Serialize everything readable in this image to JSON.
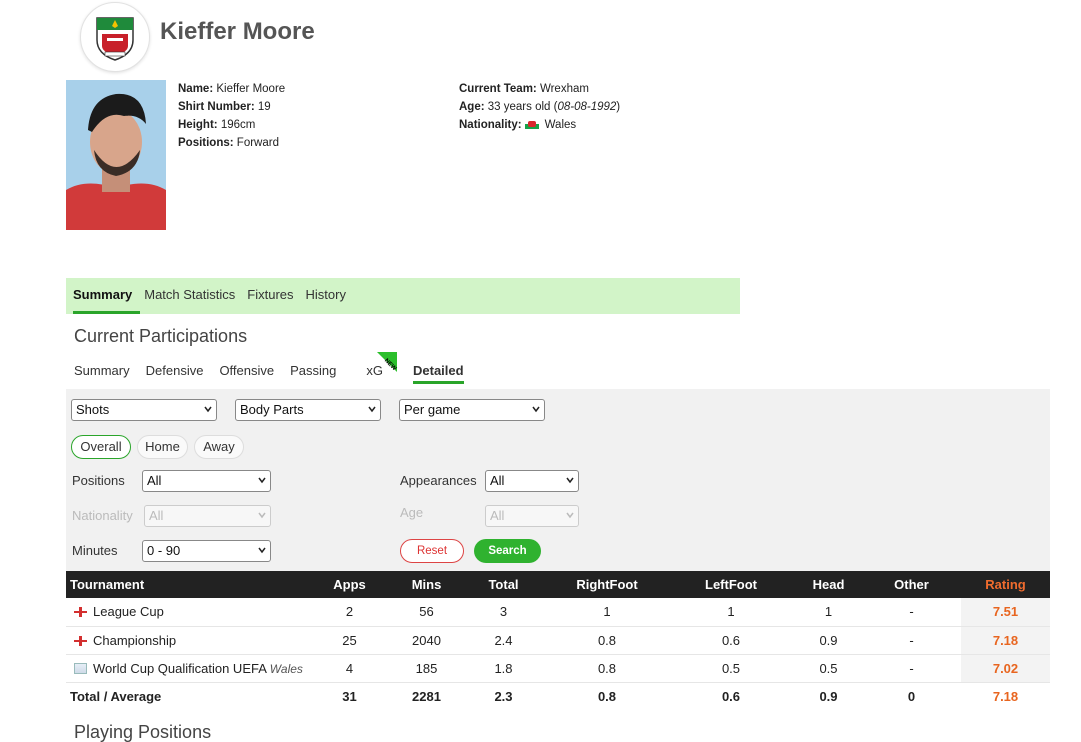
{
  "player": {
    "name": "Kieffer Moore",
    "crest_icon": "wrexham-crest-icon",
    "details_left": [
      {
        "label": "Name:",
        "value": "Kieffer Moore"
      },
      {
        "label": "Shirt Number:",
        "value": "19"
      },
      {
        "label": "Height:",
        "value": "196cm"
      },
      {
        "label": "Positions:",
        "value": "Forward"
      }
    ],
    "current_team_label": "Current Team:",
    "current_team": "Wrexham",
    "age_label": "Age:",
    "age_text": "33 years old (",
    "birth_date": "08-08-1992",
    "age_close": ")",
    "nationality_label": "Nationality:",
    "nationality": "Wales"
  },
  "main_tabs": [
    "Summary",
    "Match Statistics",
    "Fixtures",
    "History"
  ],
  "section_current": "Current Participations",
  "sub_tabs": [
    "Summary",
    "Defensive",
    "Offensive",
    "Passing",
    "xG",
    "Detailed"
  ],
  "new_badge": "NEW",
  "filters": {
    "stat_category": "Shots",
    "breakdown": "Body Parts",
    "per": "Per game",
    "venue": [
      "Overall",
      "Home",
      "Away"
    ],
    "positions_label": "Positions",
    "positions_value": "All",
    "appearances_label": "Appearances",
    "appearances_value": "All",
    "nationality_label": "Nationality",
    "nationality_value": "All",
    "age_label": "Age",
    "age_value": "All",
    "minutes_label": "Minutes",
    "minutes_value": "0 - 90",
    "reset_label": "Reset",
    "search_label": "Search"
  },
  "table": {
    "headers": [
      "Tournament",
      "Apps",
      "Mins",
      "Total",
      "RightFoot",
      "LeftFoot",
      "Head",
      "Other",
      "Rating"
    ],
    "rows": [
      {
        "tournament": "League Cup",
        "team": "",
        "apps": "2",
        "mins": "56",
        "total": "3",
        "right": "1",
        "left": "1",
        "head": "1",
        "other": "-",
        "rating": "7.51"
      },
      {
        "tournament": "Championship",
        "team": "",
        "apps": "25",
        "mins": "2040",
        "total": "2.4",
        "right": "0.8",
        "left": "0.6",
        "head": "0.9",
        "other": "-",
        "rating": "7.18"
      },
      {
        "tournament": "World Cup Qualification UEFA",
        "team": "Wales",
        "apps": "4",
        "mins": "185",
        "total": "1.8",
        "right": "0.8",
        "left": "0.5",
        "head": "0.5",
        "other": "-",
        "rating": "7.02"
      }
    ],
    "total_row": {
      "label": "Total / Average",
      "apps": "31",
      "mins": "2281",
      "total": "2.3",
      "right": "0.8",
      "left": "0.6",
      "head": "0.9",
      "other": "0",
      "rating": "7.18"
    }
  },
  "section_positions": "Playing Positions",
  "colors": {
    "accent_green": "#2aa52a",
    "tab_bar_bg": "#d2f4c8",
    "rating_orange": "#e8651f",
    "table_header": "#222222"
  }
}
